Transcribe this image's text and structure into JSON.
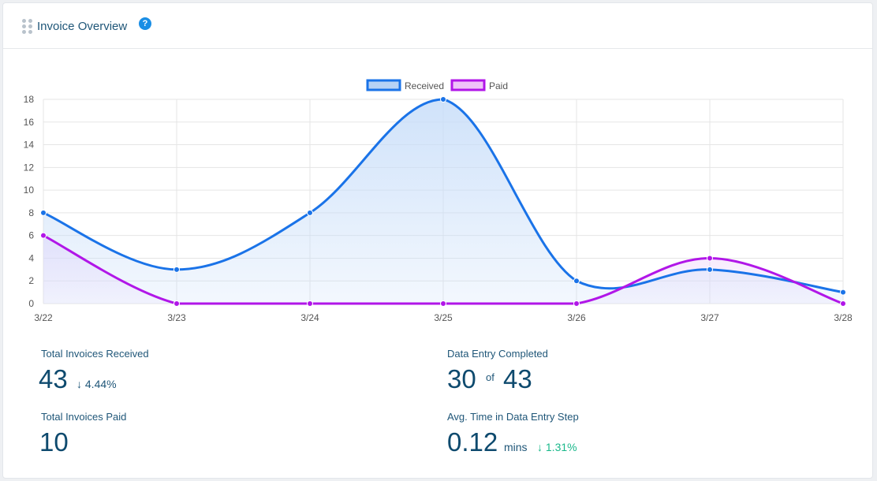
{
  "widget": {
    "title": "Invoice Overview",
    "help": "?"
  },
  "chart_data": {
    "type": "line",
    "categories": [
      "3/22",
      "3/23",
      "3/24",
      "3/25",
      "3/26",
      "3/27",
      "3/28"
    ],
    "series": [
      {
        "name": "Received",
        "values": [
          8,
          3,
          8,
          18,
          2,
          3,
          1
        ],
        "color": "#1a73e8",
        "fill": "#c7ddf9"
      },
      {
        "name": "Paid",
        "values": [
          6,
          0,
          0,
          0,
          0,
          4,
          0
        ],
        "color": "#b116e8",
        "fill": "#eed6fb"
      }
    ],
    "ylim": [
      0,
      18
    ],
    "yticks": [
      "0",
      "2",
      "4",
      "6",
      "8",
      "10",
      "12",
      "14",
      "16",
      "18"
    ],
    "grid": true,
    "legend": "top-center"
  },
  "stats": {
    "received": {
      "label": "Total Invoices Received",
      "value": "43",
      "change": "4.44%",
      "arrow": "↓"
    },
    "paid": {
      "label": "Total Invoices Paid",
      "value": "10"
    },
    "data_entry": {
      "label": "Data Entry Completed",
      "completed": "30",
      "of": "of",
      "total": "43"
    },
    "avg_time": {
      "label": "Avg. Time in Data Entry Step",
      "value": "0.12",
      "unit": "mins",
      "change": "1.31%",
      "arrow": "↓"
    }
  }
}
